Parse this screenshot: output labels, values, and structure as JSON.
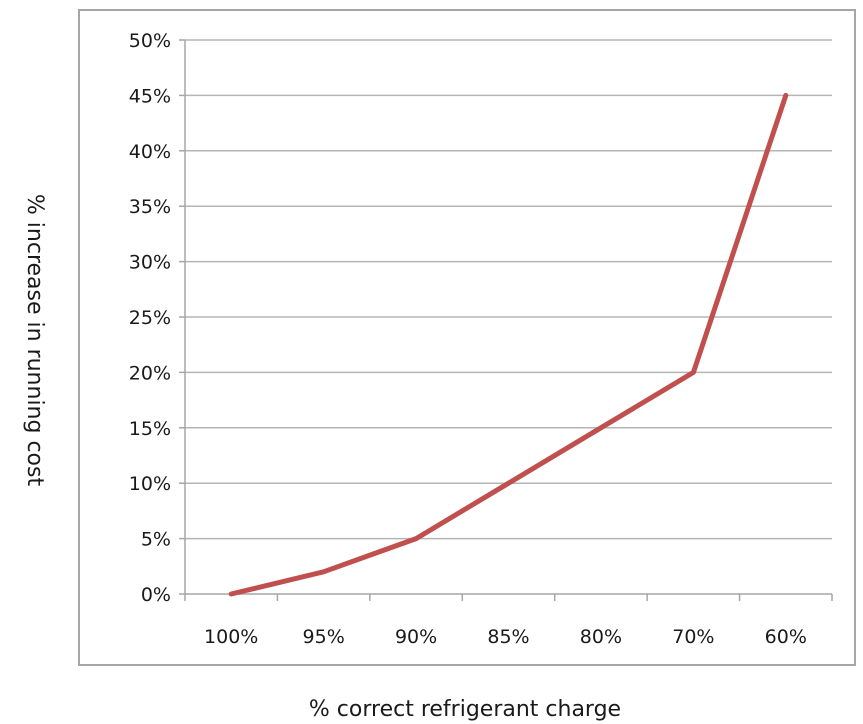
{
  "chart_data": {
    "type": "line",
    "title": "",
    "xlabel": "% correct refrigerant charge",
    "ylabel": "% increase in running cost",
    "categories": [
      "100%",
      "95%",
      "90%",
      "85%",
      "80%",
      "70%",
      "60%"
    ],
    "series": [
      {
        "values": [
          0,
          2,
          5,
          10,
          15,
          20,
          45
        ]
      }
    ],
    "ylim": [
      0,
      50
    ],
    "yticks": [
      0,
      5,
      10,
      15,
      20,
      25,
      30,
      35,
      40,
      45,
      50
    ],
    "ytick_labels": [
      "0%",
      "5%",
      "10%",
      "15%",
      "20%",
      "25%",
      "30%",
      "35%",
      "40%",
      "45%",
      "50%"
    ],
    "grid": "horizontal",
    "legend": "none",
    "line_color": "#c0504d",
    "gridline_color": "#b5b5b5",
    "frame_color": "#a6a6a6"
  }
}
